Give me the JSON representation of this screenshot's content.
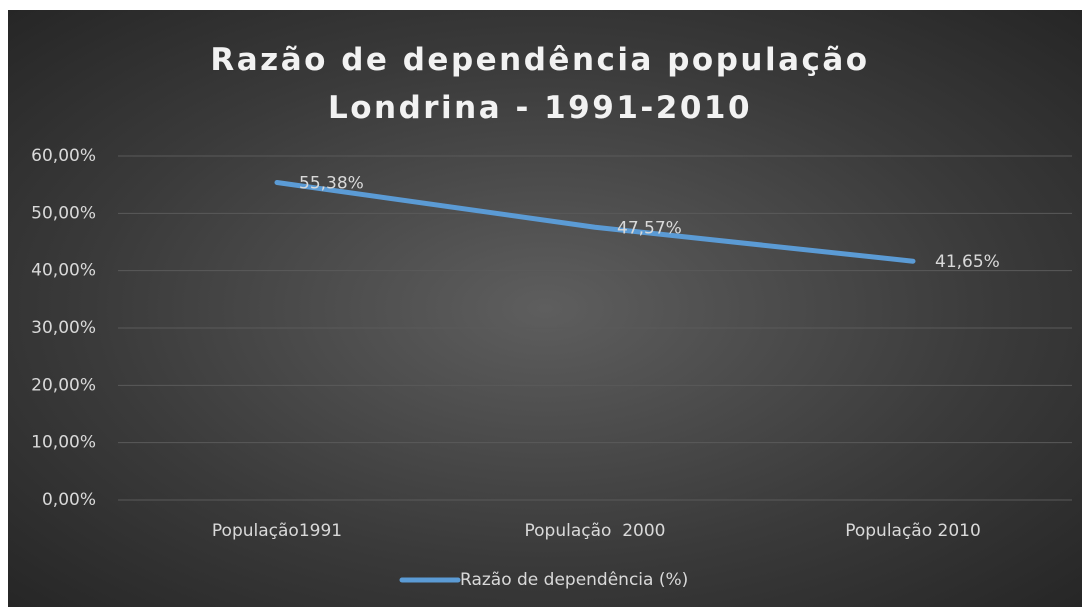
{
  "chart_data": {
    "type": "line",
    "title": "Razão de dependência população Londrina - 1991-2010",
    "categories": [
      "População1991",
      "População  2000",
      "População 2010"
    ],
    "series": [
      {
        "name": "Razão de dependência (%)",
        "color": "#5b9bd5",
        "values": [
          55.38,
          47.57,
          41.65
        ],
        "value_labels": [
          "55,38%",
          "47,57%",
          "41,65%"
        ]
      }
    ],
    "ylim": [
      0,
      60
    ],
    "yticks": [
      {
        "value": 0,
        "label": "0,00%"
      },
      {
        "value": 10,
        "label": "10,00%"
      },
      {
        "value": 20,
        "label": "20,00%"
      },
      {
        "value": 30,
        "label": "30,00%"
      },
      {
        "value": 40,
        "label": "40,00%"
      },
      {
        "value": 50,
        "label": "50,00%"
      },
      {
        "value": 60,
        "label": "60,00%"
      }
    ],
    "grid": true,
    "legend": "bottom"
  }
}
